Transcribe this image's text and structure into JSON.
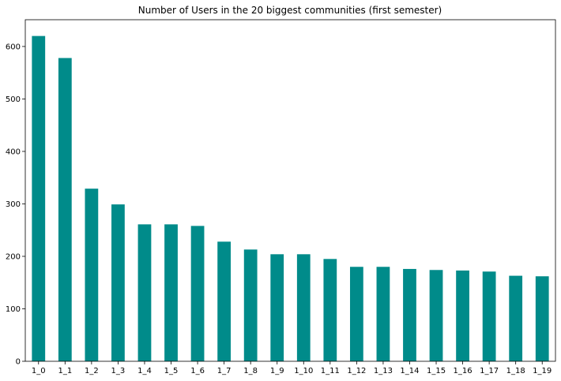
{
  "chart_data": {
    "type": "bar",
    "title": "Number of Users in the 20 biggest communities (first semester)",
    "xlabel": "",
    "ylabel": "",
    "categories": [
      "1_0",
      "1_1",
      "1_2",
      "1_3",
      "1_4",
      "1_5",
      "1_6",
      "1_7",
      "1_8",
      "1_9",
      "1_10",
      "1_11",
      "1_12",
      "1_13",
      "1_14",
      "1_15",
      "1_16",
      "1_17",
      "1_18",
      "1_19"
    ],
    "values": [
      620,
      578,
      329,
      299,
      261,
      261,
      258,
      228,
      213,
      204,
      204,
      195,
      180,
      180,
      176,
      174,
      173,
      171,
      163,
      162
    ],
    "ylim": [
      0,
      651
    ],
    "yticks": [
      0,
      100,
      200,
      300,
      400,
      500,
      600
    ],
    "bar_color": "#008b8a",
    "grid": false,
    "legend": "none"
  }
}
